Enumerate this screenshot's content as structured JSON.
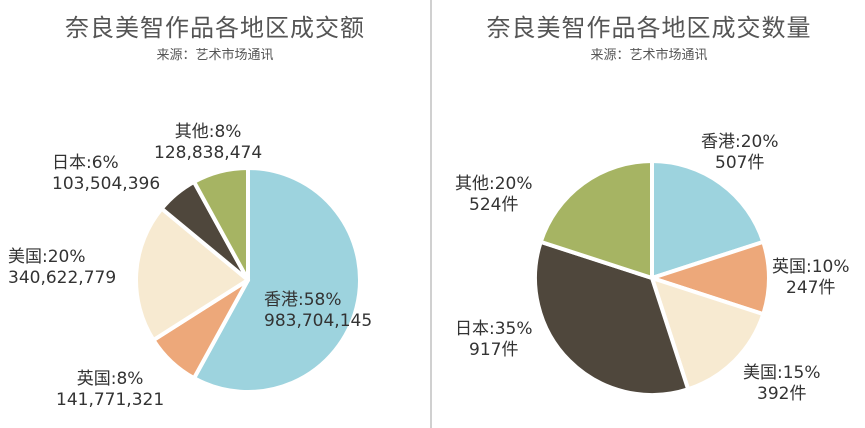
{
  "chart_data": [
    {
      "type": "pie",
      "title": "奈良美智作品各地区成交额",
      "subtitle": "来源：艺术市场通讯",
      "slices": [
        {
          "label": "香港:58%",
          "pct": 58,
          "value_text": "983,704,145",
          "value": 983704145,
          "color": "#9dd3de"
        },
        {
          "label": "英国:8%",
          "pct": 8,
          "value_text": "141,771,321",
          "value": 141771321,
          "color": "#eda87a"
        },
        {
          "label": "美国:20%",
          "pct": 20,
          "value_text": "340,622,779",
          "value": 340622779,
          "color": "#f7ead1"
        },
        {
          "label": "日本:6%",
          "pct": 6,
          "value_text": "103,504,396",
          "value": 103504396,
          "color": "#4f473c"
        },
        {
          "label": "其他:8%",
          "pct": 8,
          "value_text": "128,838,474",
          "value": 128838474,
          "color": "#a6b463"
        }
      ]
    },
    {
      "type": "pie",
      "title": "奈良美智作品各地区成交数量",
      "subtitle": "来源：艺术市场通讯",
      "slices": [
        {
          "label": "香港:20%",
          "pct": 20,
          "value_text": "507件",
          "value": 507,
          "color": "#9dd3de"
        },
        {
          "label": "英国:10%",
          "pct": 10,
          "value_text": "247件",
          "value": 247,
          "color": "#eda87a"
        },
        {
          "label": "美国:15%",
          "pct": 15,
          "value_text": "392件",
          "value": 392,
          "color": "#f7ead1"
        },
        {
          "label": "日本:35%",
          "pct": 35,
          "value_text": "917件",
          "value": 917,
          "color": "#4f473c"
        },
        {
          "label": "其他:20%",
          "pct": 20,
          "value_text": "524件",
          "value": 524,
          "color": "#a6b463"
        }
      ]
    }
  ]
}
